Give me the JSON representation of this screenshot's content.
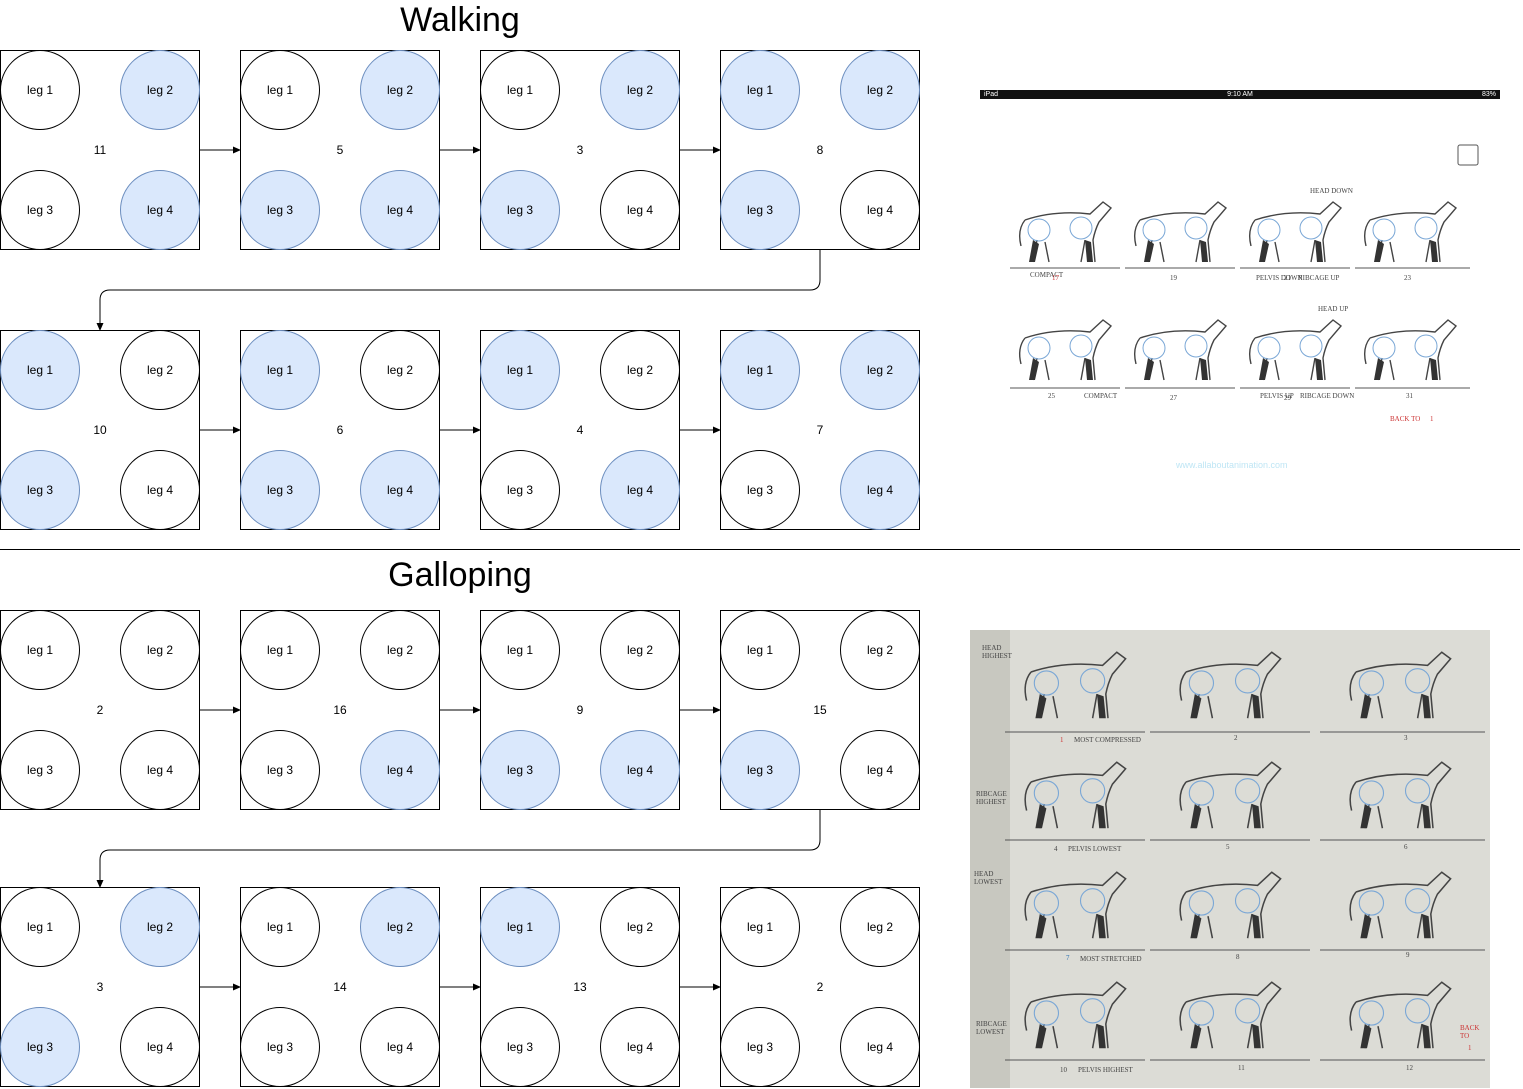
{
  "walking": {
    "title": "Walking",
    "frames": [
      {
        "count": "11",
        "legs": [
          {
            "label": "leg 1",
            "on": false
          },
          {
            "label": "leg 2",
            "on": true
          },
          {
            "label": "leg 3",
            "on": false
          },
          {
            "label": "leg 4",
            "on": true
          }
        ]
      },
      {
        "count": "5",
        "legs": [
          {
            "label": "leg 1",
            "on": false
          },
          {
            "label": "leg 2",
            "on": true
          },
          {
            "label": "leg 3",
            "on": true
          },
          {
            "label": "leg 4",
            "on": true
          }
        ]
      },
      {
        "count": "3",
        "legs": [
          {
            "label": "leg 1",
            "on": false
          },
          {
            "label": "leg 2",
            "on": true
          },
          {
            "label": "leg 3",
            "on": true
          },
          {
            "label": "leg 4",
            "on": false
          }
        ]
      },
      {
        "count": "8",
        "legs": [
          {
            "label": "leg 1",
            "on": true
          },
          {
            "label": "leg 2",
            "on": true
          },
          {
            "label": "leg 3",
            "on": true
          },
          {
            "label": "leg 4",
            "on": false
          }
        ]
      },
      {
        "count": "10",
        "legs": [
          {
            "label": "leg 1",
            "on": true
          },
          {
            "label": "leg 2",
            "on": false
          },
          {
            "label": "leg 3",
            "on": true
          },
          {
            "label": "leg 4",
            "on": false
          }
        ]
      },
      {
        "count": "6",
        "legs": [
          {
            "label": "leg 1",
            "on": true
          },
          {
            "label": "leg 2",
            "on": false
          },
          {
            "label": "leg 3",
            "on": true
          },
          {
            "label": "leg 4",
            "on": true
          }
        ]
      },
      {
        "count": "4",
        "legs": [
          {
            "label": "leg 1",
            "on": true
          },
          {
            "label": "leg 2",
            "on": false
          },
          {
            "label": "leg 3",
            "on": false
          },
          {
            "label": "leg 4",
            "on": true
          }
        ]
      },
      {
        "count": "7",
        "legs": [
          {
            "label": "leg 1",
            "on": true
          },
          {
            "label": "leg 2",
            "on": true
          },
          {
            "label": "leg 3",
            "on": false
          },
          {
            "label": "leg 4",
            "on": true
          }
        ]
      }
    ],
    "reference": {
      "status_left": "iPad",
      "status_time": "9:10 AM",
      "status_right": "83%",
      "labels": [
        "HEAD DOWN",
        "COMPACT",
        "17",
        "19",
        "PELVIS DOWN",
        "21",
        "RIBCAGE UP",
        "23",
        "HEAD UP",
        "25",
        "COMPACT",
        "27",
        "PELVIS UP",
        "29",
        "RIBCAGE DOWN",
        "31",
        "BACK TO",
        "1"
      ],
      "url": "www.allaboutanimation.com"
    }
  },
  "galloping": {
    "title": "Galloping",
    "frames": [
      {
        "count": "2",
        "legs": [
          {
            "label": "leg 1",
            "on": false
          },
          {
            "label": "leg 2",
            "on": false
          },
          {
            "label": "leg 3",
            "on": false
          },
          {
            "label": "leg 4",
            "on": false
          }
        ]
      },
      {
        "count": "16",
        "legs": [
          {
            "label": "leg 1",
            "on": false
          },
          {
            "label": "leg 2",
            "on": false
          },
          {
            "label": "leg 3",
            "on": false
          },
          {
            "label": "leg 4",
            "on": true
          }
        ]
      },
      {
        "count": "9",
        "legs": [
          {
            "label": "leg 1",
            "on": false
          },
          {
            "label": "leg 2",
            "on": false
          },
          {
            "label": "leg 3",
            "on": true
          },
          {
            "label": "leg 4",
            "on": true
          }
        ]
      },
      {
        "count": "15",
        "legs": [
          {
            "label": "leg 1",
            "on": false
          },
          {
            "label": "leg 2",
            "on": false
          },
          {
            "label": "leg 3",
            "on": true
          },
          {
            "label": "leg 4",
            "on": false
          }
        ]
      },
      {
        "count": "3",
        "legs": [
          {
            "label": "leg 1",
            "on": false
          },
          {
            "label": "leg 2",
            "on": true
          },
          {
            "label": "leg 3",
            "on": true
          },
          {
            "label": "leg 4",
            "on": false
          }
        ]
      },
      {
        "count": "14",
        "legs": [
          {
            "label": "leg 1",
            "on": false
          },
          {
            "label": "leg 2",
            "on": true
          },
          {
            "label": "leg 3",
            "on": false
          },
          {
            "label": "leg 4",
            "on": false
          }
        ]
      },
      {
        "count": "13",
        "legs": [
          {
            "label": "leg 1",
            "on": true
          },
          {
            "label": "leg 2",
            "on": false
          },
          {
            "label": "leg 3",
            "on": false
          },
          {
            "label": "leg 4",
            "on": false
          }
        ]
      },
      {
        "count": "2",
        "legs": [
          {
            "label": "leg 1",
            "on": false
          },
          {
            "label": "leg 2",
            "on": false
          },
          {
            "label": "leg 3",
            "on": false
          },
          {
            "label": "leg 4",
            "on": false
          }
        ]
      }
    ],
    "reference": {
      "labels": [
        "HEAD HIGHEST",
        "1",
        "MOST COMPRESSED",
        "2",
        "3",
        "RIBCAGE HIGHEST",
        "4",
        "PELVIS LOWEST",
        "5",
        "6",
        "HEAD LOWEST",
        "7",
        "MOST STRETCHED",
        "8",
        "9",
        "RIBCAGE LOWEST",
        "10",
        "PELVIS HIGHEST",
        "11",
        "12",
        "BACK TO",
        "1"
      ]
    }
  },
  "colors": {
    "active_fill": "#dae8fc",
    "active_stroke": "#6c8ebf",
    "stroke": "#000000"
  }
}
